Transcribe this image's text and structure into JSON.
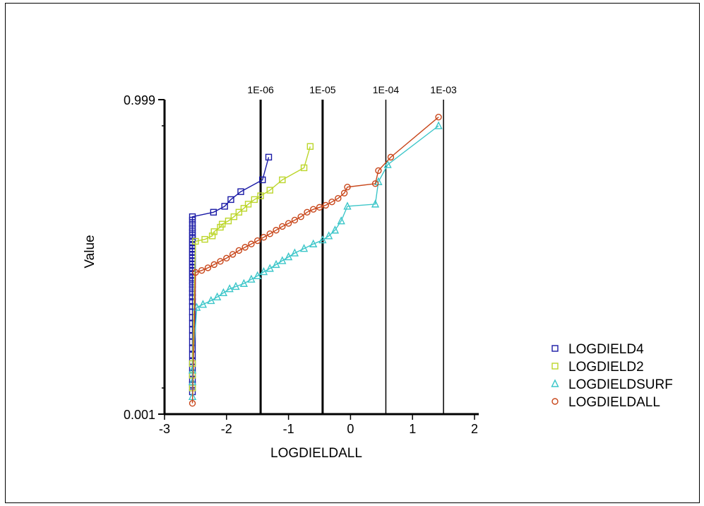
{
  "chart_data": {
    "type": "scatter",
    "x_label": "LOGDIELDALL",
    "y_label": "Value",
    "x_range": [
      -3,
      2
    ],
    "x_ticks": [
      -3,
      -2,
      -1,
      0,
      1,
      2
    ],
    "y_scale": "probability",
    "y_range": [
      0.001,
      0.999
    ],
    "y_ticks": [
      "0.999",
      "0.001"
    ],
    "grid": false,
    "legend_position": "right",
    "reference_lines": [
      {
        "label": "1E-06",
        "x": -1.45,
        "weight": "bold"
      },
      {
        "label": "1E-05",
        "x": -0.45,
        "weight": "bold"
      },
      {
        "label": "1E-04",
        "x": 0.57,
        "weight": "normal"
      },
      {
        "label": "1E-03",
        "x": 1.5,
        "weight": "normal"
      }
    ],
    "series": [
      {
        "name": "LOGDIELD4",
        "color": "#1a1aa6",
        "marker": "square",
        "points": [
          [
            -2.55,
            0.004
          ],
          [
            -2.55,
            0.006
          ],
          [
            -2.55,
            0.008
          ],
          [
            -2.55,
            0.011
          ],
          [
            -2.55,
            0.015
          ],
          [
            -2.55,
            0.02
          ],
          [
            -2.55,
            0.027
          ],
          [
            -2.55,
            0.036
          ],
          [
            -2.55,
            0.047
          ],
          [
            -2.55,
            0.06
          ],
          [
            -2.55,
            0.076
          ],
          [
            -2.55,
            0.095
          ],
          [
            -2.55,
            0.117
          ],
          [
            -2.55,
            0.14
          ],
          [
            -2.55,
            0.165
          ],
          [
            -2.55,
            0.19
          ],
          [
            -2.55,
            0.215
          ],
          [
            -2.55,
            0.24
          ],
          [
            -2.55,
            0.265
          ],
          [
            -2.55,
            0.29
          ],
          [
            -2.55,
            0.315
          ],
          [
            -2.55,
            0.34
          ],
          [
            -2.55,
            0.365
          ],
          [
            -2.55,
            0.39
          ],
          [
            -2.55,
            0.415
          ],
          [
            -2.55,
            0.44
          ],
          [
            -2.55,
            0.465
          ],
          [
            -2.55,
            0.49
          ],
          [
            -2.55,
            0.515
          ],
          [
            -2.55,
            0.54
          ],
          [
            -2.55,
            0.565
          ],
          [
            -2.55,
            0.59
          ],
          [
            -2.55,
            0.615
          ],
          [
            -2.55,
            0.64
          ],
          [
            -2.55,
            0.665
          ],
          [
            -2.55,
            0.69
          ],
          [
            -2.55,
            0.715
          ],
          [
            -2.55,
            0.74
          ],
          [
            -2.55,
            0.765
          ],
          [
            -2.55,
            0.785
          ],
          [
            -2.21,
            0.81
          ],
          [
            -2.03,
            0.84
          ],
          [
            -1.93,
            0.87
          ],
          [
            -1.77,
            0.9
          ],
          [
            -1.42,
            0.935
          ],
          [
            -1.32,
            0.975
          ]
        ]
      },
      {
        "name": "LOGDIELD2",
        "color": "#bcd62b",
        "marker": "square",
        "points": [
          [
            -2.55,
            0.005
          ],
          [
            -2.55,
            0.01
          ],
          [
            -2.55,
            0.018
          ],
          [
            -2.5,
            0.62
          ],
          [
            -2.35,
            0.635
          ],
          [
            -2.23,
            0.66
          ],
          [
            -2.2,
            0.69
          ],
          [
            -2.1,
            0.72
          ],
          [
            -2.07,
            0.74
          ],
          [
            -1.97,
            0.76
          ],
          [
            -1.88,
            0.785
          ],
          [
            -1.8,
            0.81
          ],
          [
            -1.72,
            0.83
          ],
          [
            -1.65,
            0.85
          ],
          [
            -1.55,
            0.87
          ],
          [
            -1.45,
            0.885
          ],
          [
            -1.3,
            0.905
          ],
          [
            -1.1,
            0.935
          ],
          [
            -0.75,
            0.96
          ],
          [
            -0.65,
            0.985
          ]
        ]
      },
      {
        "name": "LOGDIELDSURF",
        "color": "#3cc6c9",
        "marker": "triangle",
        "points": [
          [
            -2.55,
            0.003
          ],
          [
            -2.55,
            0.007
          ],
          [
            -2.55,
            0.013
          ],
          [
            -2.48,
            0.16
          ],
          [
            -2.38,
            0.175
          ],
          [
            -2.25,
            0.195
          ],
          [
            -2.15,
            0.215
          ],
          [
            -2.05,
            0.24
          ],
          [
            -1.95,
            0.265
          ],
          [
            -1.85,
            0.28
          ],
          [
            -1.72,
            0.3
          ],
          [
            -1.6,
            0.33
          ],
          [
            -1.5,
            0.355
          ],
          [
            -1.4,
            0.385
          ],
          [
            -1.3,
            0.41
          ],
          [
            -1.2,
            0.44
          ],
          [
            -1.1,
            0.47
          ],
          [
            -1.0,
            0.5
          ],
          [
            -0.9,
            0.53
          ],
          [
            -0.75,
            0.565
          ],
          [
            -0.6,
            0.6
          ],
          [
            -0.45,
            0.63
          ],
          [
            -0.35,
            0.66
          ],
          [
            -0.25,
            0.7
          ],
          [
            -0.15,
            0.76
          ],
          [
            -0.05,
            0.84
          ],
          [
            0.4,
            0.85
          ],
          [
            0.45,
            0.93
          ],
          [
            0.6,
            0.965
          ],
          [
            1.42,
            0.995
          ]
        ]
      },
      {
        "name": "LOGDIELDALL",
        "color": "#c8461a",
        "marker": "circle",
        "points": [
          [
            -2.55,
            0.002
          ],
          [
            -2.5,
            0.38
          ],
          [
            -2.4,
            0.395
          ],
          [
            -2.3,
            0.415
          ],
          [
            -2.2,
            0.44
          ],
          [
            -2.1,
            0.465
          ],
          [
            -2.0,
            0.49
          ],
          [
            -1.9,
            0.52
          ],
          [
            -1.8,
            0.55
          ],
          [
            -1.7,
            0.575
          ],
          [
            -1.6,
            0.6
          ],
          [
            -1.5,
            0.625
          ],
          [
            -1.4,
            0.65
          ],
          [
            -1.3,
            0.675
          ],
          [
            -1.2,
            0.7
          ],
          [
            -1.1,
            0.725
          ],
          [
            -1.0,
            0.745
          ],
          [
            -0.9,
            0.765
          ],
          [
            -0.8,
            0.785
          ],
          [
            -0.7,
            0.81
          ],
          [
            -0.6,
            0.825
          ],
          [
            -0.5,
            0.835
          ],
          [
            -0.4,
            0.845
          ],
          [
            -0.3,
            0.86
          ],
          [
            -0.2,
            0.875
          ],
          [
            -0.1,
            0.895
          ],
          [
            -0.05,
            0.915
          ],
          [
            0.4,
            0.925
          ],
          [
            0.45,
            0.955
          ],
          [
            0.65,
            0.975
          ],
          [
            1.42,
            0.997
          ]
        ]
      }
    ]
  }
}
